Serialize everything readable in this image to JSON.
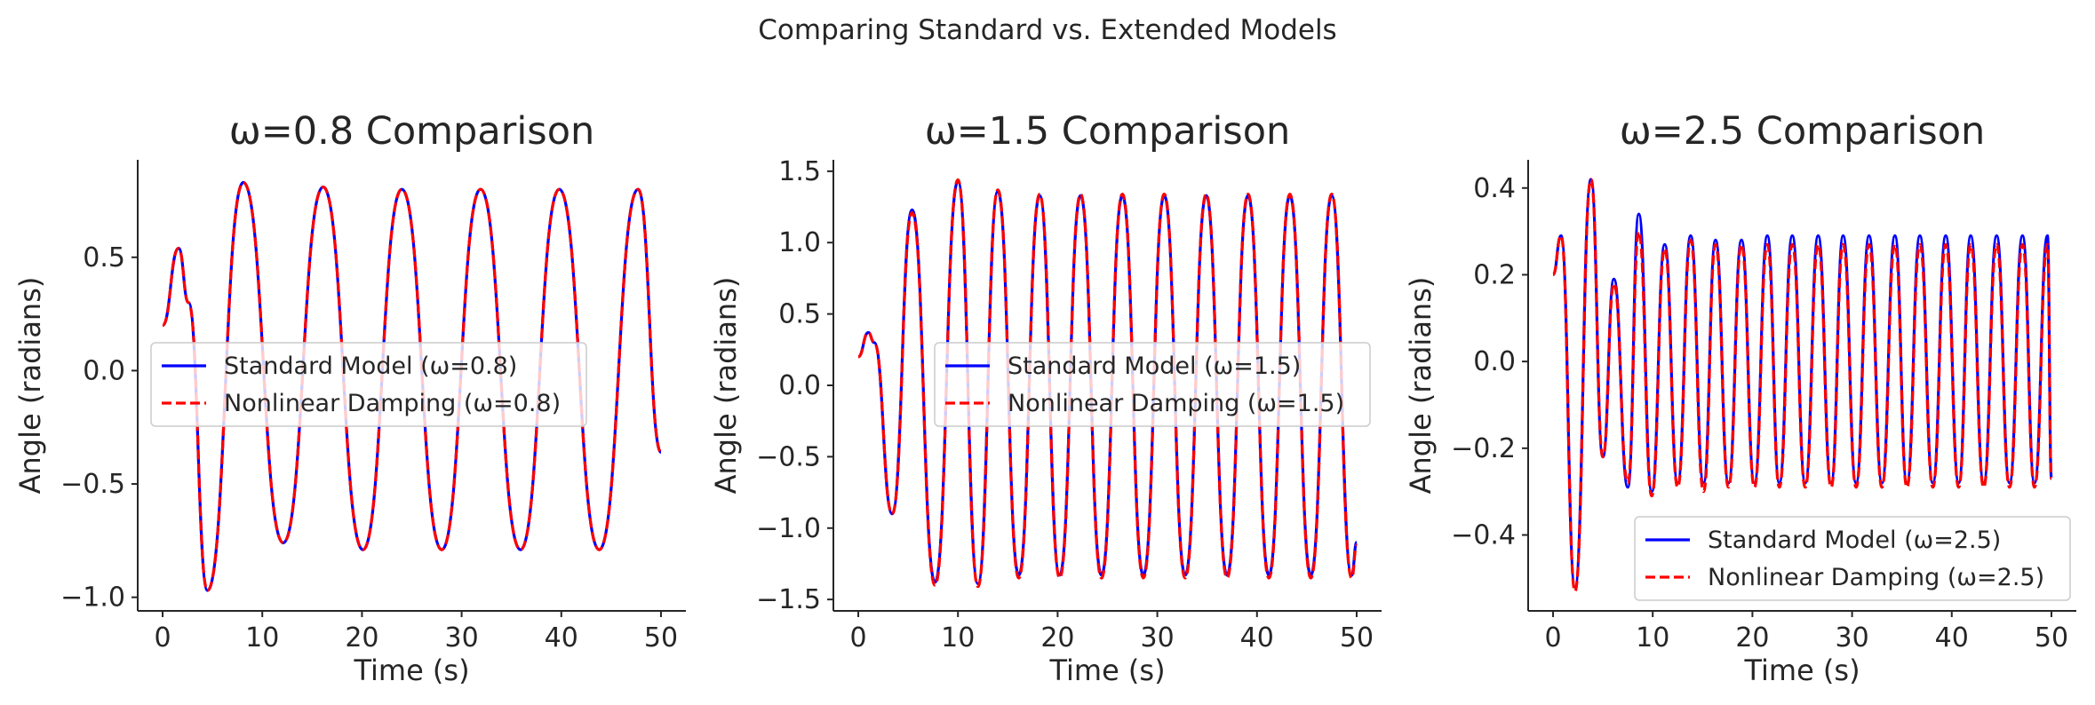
{
  "figure": {
    "suptitle": "Comparing Standard vs. Extended Models"
  },
  "styles": {
    "standard_color": "#0000ff",
    "nonlinear_color": "#ff0000",
    "axis_color": "#262626",
    "legend_border": "#cccccc"
  },
  "chart_data": [
    {
      "type": "line",
      "title": "ω=0.8 Comparison",
      "xlabel": "Time (s)",
      "ylabel": "Angle (radians)",
      "xlim": [
        -2.5,
        52.5
      ],
      "ylim": [
        -1.06,
        0.93
      ],
      "xticks": [
        0,
        10,
        20,
        30,
        40,
        50
      ],
      "xtick_labels": [
        "0",
        "10",
        "20",
        "30",
        "40",
        "50"
      ],
      "yticks": [
        -1.0,
        -0.5,
        0.0,
        0.5
      ],
      "ytick_labels": [
        "−1.0",
        "−0.5",
        "0.0",
        "0.5"
      ],
      "grid": false,
      "legend_position": "center-left",
      "x": [
        0,
        1.6,
        2.6,
        4.5,
        8.1,
        12.1,
        16.1,
        20.1,
        24.0,
        28.0,
        31.9,
        35.9,
        39.8,
        43.8,
        47.7,
        50.0
      ],
      "series": [
        {
          "name": "Standard Model (ω=0.8)",
          "style": "solid",
          "values": [
            0.2,
            0.54,
            0.3,
            -0.97,
            0.83,
            -0.76,
            0.81,
            -0.79,
            0.8,
            -0.79,
            0.8,
            -0.79,
            0.8,
            -0.79,
            0.8,
            -0.36
          ]
        },
        {
          "name": "Nonlinear Damping (ω=0.8)",
          "style": "dashed",
          "values": [
            0.2,
            0.54,
            0.3,
            -0.97,
            0.83,
            -0.76,
            0.81,
            -0.79,
            0.8,
            -0.79,
            0.8,
            -0.79,
            0.8,
            -0.79,
            0.8,
            -0.36
          ]
        }
      ]
    },
    {
      "type": "line",
      "title": "ω=1.5 Comparison",
      "xlabel": "Time (s)",
      "ylabel": "Angle (radians)",
      "xlim": [
        -2.5,
        52.5
      ],
      "ylim": [
        -1.58,
        1.58
      ],
      "xticks": [
        0,
        10,
        20,
        30,
        40,
        50
      ],
      "xtick_labels": [
        "0",
        "10",
        "20",
        "30",
        "40",
        "50"
      ],
      "yticks": [
        -1.5,
        -1.0,
        -0.5,
        0.0,
        0.5,
        1.0,
        1.5
      ],
      "ytick_labels": [
        "−1.5",
        "−1.0",
        "−0.5",
        "0.0",
        "0.5",
        "1.0",
        "1.5"
      ],
      "grid": false,
      "legend_position": "center-right",
      "x": [
        0,
        1.0,
        1.6,
        3.4,
        5.4,
        7.7,
        10.0,
        12.0,
        14.0,
        16.1,
        18.2,
        20.2,
        22.3,
        24.4,
        26.5,
        28.6,
        30.7,
        32.8,
        34.9,
        37.0,
        39.1,
        41.2,
        43.3,
        45.4,
        47.5,
        49.5,
        50.0
      ],
      "series": [
        {
          "name": "Standard Model (ω=1.5)",
          "style": "solid",
          "values": [
            0.2,
            0.37,
            0.3,
            -0.9,
            1.23,
            -1.38,
            1.43,
            -1.39,
            1.36,
            -1.33,
            1.33,
            -1.33,
            1.33,
            -1.33,
            1.33,
            -1.33,
            1.33,
            -1.33,
            1.33,
            -1.33,
            1.33,
            -1.33,
            1.33,
            -1.33,
            1.33,
            -1.33,
            -1.1
          ]
        },
        {
          "name": "Nonlinear Damping (ω=1.5)",
          "style": "dashed",
          "values": [
            0.2,
            0.37,
            0.3,
            -0.9,
            1.21,
            -1.4,
            1.44,
            -1.41,
            1.37,
            -1.35,
            1.34,
            -1.35,
            1.34,
            -1.35,
            1.34,
            -1.35,
            1.34,
            -1.35,
            1.34,
            -1.35,
            1.34,
            -1.35,
            1.34,
            -1.35,
            1.34,
            -1.35,
            -1.12
          ]
        }
      ]
    },
    {
      "type": "line",
      "title": "ω=2.5 Comparison",
      "xlabel": "Time (s)",
      "ylabel": "Angle (radians)",
      "xlim": [
        -2.5,
        52.5
      ],
      "ylim": [
        -0.575,
        0.465
      ],
      "xticks": [
        0,
        10,
        20,
        30,
        40,
        50
      ],
      "xtick_labels": [
        "0",
        "10",
        "20",
        "30",
        "40",
        "50"
      ],
      "yticks": [
        -0.4,
        -0.2,
        0.0,
        0.2,
        0.4
      ],
      "ytick_labels": [
        "−0.4",
        "−0.2",
        "0.0",
        "0.2",
        "0.4"
      ],
      "grid": false,
      "legend_position": "lower-right",
      "x": [
        0,
        0.8,
        2.2,
        3.8,
        5.0,
        6.1,
        7.5,
        8.6,
        9.9,
        11.2,
        12.5,
        13.8,
        15.1,
        16.3,
        17.6,
        18.9,
        20.2,
        21.5,
        22.7,
        24.0,
        25.3,
        26.6,
        27.9,
        29.1,
        30.4,
        31.7,
        33.0,
        34.3,
        35.5,
        36.8,
        38.1,
        39.4,
        40.7,
        41.9,
        43.2,
        44.5,
        45.8,
        47.1,
        48.3,
        49.6,
        50.0
      ],
      "series": [
        {
          "name": "Standard Model (ω=2.5)",
          "style": "solid",
          "values": [
            0.2,
            0.29,
            -0.52,
            0.42,
            -0.22,
            0.19,
            -0.29,
            0.34,
            -0.3,
            0.27,
            -0.28,
            0.29,
            -0.28,
            0.28,
            -0.28,
            0.28,
            -0.28,
            0.29,
            -0.28,
            0.29,
            -0.28,
            0.29,
            -0.28,
            0.29,
            -0.28,
            0.29,
            -0.28,
            0.29,
            -0.28,
            0.29,
            -0.28,
            0.29,
            -0.28,
            0.29,
            -0.28,
            0.29,
            -0.28,
            0.29,
            -0.28,
            0.29,
            -0.27
          ]
        },
        {
          "name": "Nonlinear Damping (ω=2.5)",
          "style": "dashed",
          "values": [
            0.2,
            0.29,
            -0.53,
            0.42,
            -0.22,
            0.18,
            -0.28,
            0.3,
            -0.31,
            0.26,
            -0.29,
            0.28,
            -0.3,
            0.27,
            -0.29,
            0.27,
            -0.29,
            0.27,
            -0.29,
            0.27,
            -0.29,
            0.27,
            -0.29,
            0.27,
            -0.29,
            0.27,
            -0.29,
            0.27,
            -0.29,
            0.27,
            -0.29,
            0.27,
            -0.29,
            0.27,
            -0.29,
            0.27,
            -0.29,
            0.27,
            -0.29,
            0.27,
            -0.27
          ]
        }
      ]
    }
  ]
}
